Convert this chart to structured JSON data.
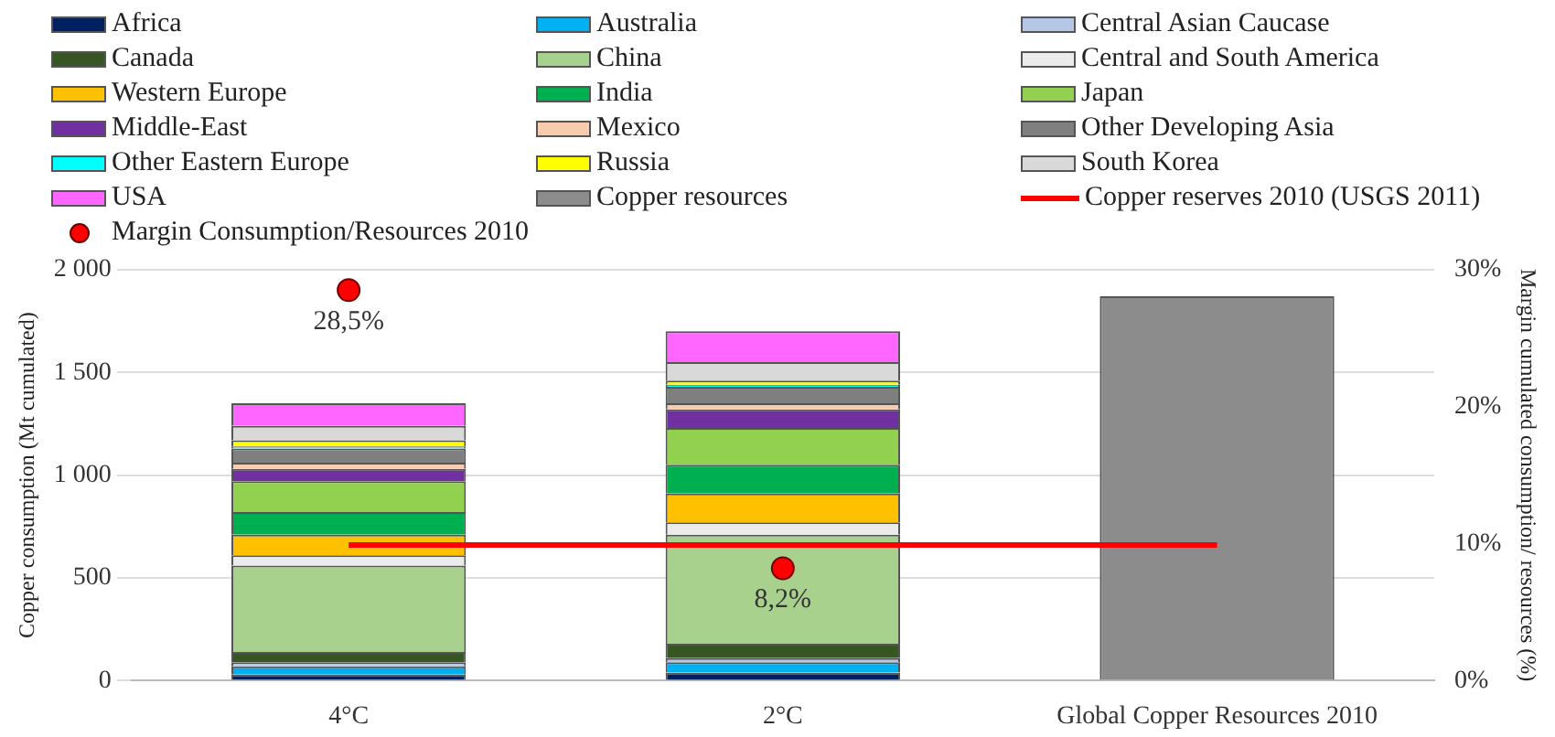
{
  "chart_data": {
    "type": "bar",
    "stacked": true,
    "categories": [
      "4°C",
      "2°C",
      "Global Copper Resources 2010"
    ],
    "ylabel": "Copper consumption (Mt cumulated)",
    "y2label": "Margin cumulated consumption/ resources (%)",
    "ylim": [
      0,
      2000
    ],
    "yticks": [
      {
        "value": 0,
        "label": "0"
      },
      {
        "value": 500,
        "label": "500"
      },
      {
        "value": 1000,
        "label": "1 000"
      },
      {
        "value": 1500,
        "label": "1 500"
      },
      {
        "value": 2000,
        "label": "2 000"
      }
    ],
    "y2lim": [
      0,
      30
    ],
    "y2ticks": [
      {
        "value": 0,
        "label": "0%"
      },
      {
        "value": 10,
        "label": "10%"
      },
      {
        "value": 20,
        "label": "20%"
      },
      {
        "value": 30,
        "label": "30%"
      }
    ],
    "grid": "y",
    "legend": "top",
    "series": [
      {
        "name": "Africa",
        "color": "#002060",
        "values": [
          30,
          40,
          null
        ]
      },
      {
        "name": "Australia",
        "color": "#00b0f0",
        "values": [
          40,
          50,
          null
        ]
      },
      {
        "name": "Central Asian Caucase",
        "color": "#b4c7e7",
        "values": [
          20,
          20,
          null
        ]
      },
      {
        "name": "Canada",
        "color": "#375623",
        "values": [
          50,
          70,
          null
        ]
      },
      {
        "name": "China",
        "color": "#a9d18e",
        "values": [
          420,
          530,
          null
        ]
      },
      {
        "name": "Central and South America",
        "color": "#ebebeb",
        "values": [
          50,
          60,
          null
        ]
      },
      {
        "name": "Western Europe",
        "color": "#ffc000",
        "values": [
          100,
          140,
          null
        ]
      },
      {
        "name": "India",
        "color": "#00b050",
        "values": [
          110,
          140,
          null
        ]
      },
      {
        "name": "Japan",
        "color": "#92d050",
        "values": [
          150,
          180,
          null
        ]
      },
      {
        "name": "Middle-East",
        "color": "#7030a0",
        "values": [
          60,
          90,
          null
        ]
      },
      {
        "name": "Mexico",
        "color": "#f8cbad",
        "values": [
          30,
          30,
          null
        ]
      },
      {
        "name": "Other Developing Asia",
        "color": "#7f7f7f",
        "values": [
          70,
          80,
          null
        ]
      },
      {
        "name": "Other Eastern Europe",
        "color": "#00ffff",
        "values": [
          10,
          10,
          null
        ]
      },
      {
        "name": "Russia",
        "color": "#ffff00",
        "values": [
          30,
          20,
          null
        ]
      },
      {
        "name": "South Korea",
        "color": "#d9d9d9",
        "values": [
          70,
          90,
          null
        ]
      },
      {
        "name": "USA",
        "color": "#ff66ff",
        "values": [
          110,
          150,
          null
        ]
      },
      {
        "name": "Copper resources",
        "color": "#8c8c8c",
        "values": [
          null,
          null,
          1870
        ]
      },
      {
        "name": "Copper reserves 2010 (USGS 2011)",
        "type": "line",
        "color": "#ff0000",
        "values": [
          660,
          660,
          660
        ]
      },
      {
        "name": "Margin Consumption/Resources 2010",
        "type": "scatter",
        "axis": "y2",
        "marker": "circle",
        "color": "#ff0000",
        "values": [
          28.5,
          8.2,
          null
        ],
        "value_labels": [
          "28,5%",
          "8,2%",
          null
        ]
      }
    ]
  }
}
